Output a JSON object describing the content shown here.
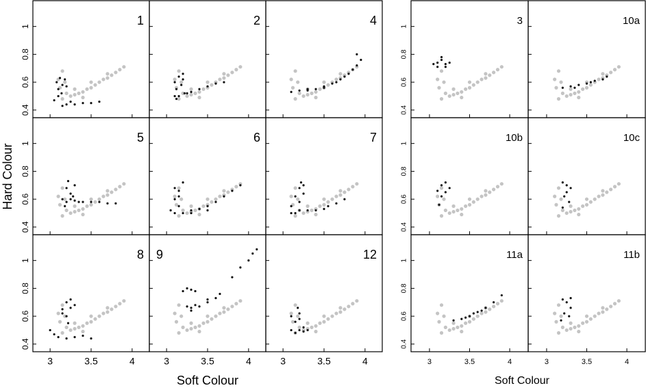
{
  "y_label": "Hard Colour",
  "groups": [
    {
      "x_label": "Soft Colour"
    },
    {
      "x_label": "Soft Colour"
    }
  ],
  "background": {
    "color": "#c4c4c4",
    "x": [
      3.1,
      3.15,
      3.12,
      3.18,
      3.2,
      3.25,
      3.3,
      3.35,
      3.4,
      3.45,
      3.5,
      3.55,
      3.6,
      3.65,
      3.7,
      3.75,
      3.8,
      3.85,
      3.9,
      3.3,
      3.5,
      3.7,
      3.15,
      3.4
    ],
    "y": [
      0.62,
      0.68,
      0.56,
      0.6,
      0.52,
      0.5,
      0.51,
      0.52,
      0.53,
      0.55,
      0.56,
      0.58,
      0.6,
      0.62,
      0.63,
      0.65,
      0.67,
      0.69,
      0.71,
      0.55,
      0.6,
      0.66,
      0.48,
      0.49
    ]
  },
  "chart_data": [
    {
      "type": "scatter",
      "label": "1",
      "color": "#111111",
      "xlim": [
        2.79,
        4.21
      ],
      "ylim": [
        0.345,
        1.185
      ],
      "xticks": [
        3,
        3.5,
        4
      ],
      "yticks": [
        0.4,
        0.6,
        0.8,
        1
      ],
      "x": [
        3.08,
        3.1,
        3.12,
        3.15,
        3.18,
        3.1,
        3.14,
        3.2,
        3.05,
        3.2,
        3.3,
        3.4,
        3.5,
        3.6,
        3.15,
        3.25
      ],
      "y": [
        0.6,
        0.55,
        0.63,
        0.58,
        0.62,
        0.5,
        0.52,
        0.57,
        0.47,
        0.44,
        0.44,
        0.45,
        0.45,
        0.46,
        0.43,
        0.46
      ]
    },
    {
      "type": "scatter",
      "label": "2",
      "color": "#111111",
      "xlim": [
        2.79,
        4.21
      ],
      "ylim": [
        0.345,
        1.185
      ],
      "xticks": [
        3,
        3.5,
        4
      ],
      "yticks": [
        0.4,
        0.6,
        0.8,
        1
      ],
      "x": [
        3.1,
        3.12,
        3.15,
        3.18,
        3.2,
        3.22,
        3.1,
        3.15,
        3.25,
        3.3,
        3.4,
        3.5,
        3.6,
        3.7,
        3.2,
        3.12
      ],
      "y": [
        0.6,
        0.55,
        0.64,
        0.58,
        0.62,
        0.52,
        0.5,
        0.5,
        0.52,
        0.53,
        0.55,
        0.57,
        0.59,
        0.6,
        0.66,
        0.48
      ]
    },
    {
      "type": "scatter",
      "label": "4",
      "color": "#111111",
      "xlim": [
        2.79,
        4.21
      ],
      "ylim": [
        0.345,
        1.185
      ],
      "xticks": [
        3,
        3.5,
        4
      ],
      "yticks": [
        0.4,
        0.6,
        0.8,
        1
      ],
      "x": [
        3.1,
        3.2,
        3.3,
        3.4,
        3.5,
        3.6,
        3.7,
        3.75,
        3.8,
        3.85,
        3.9,
        3.95,
        3.3,
        3.5,
        3.65,
        3.9
      ],
      "y": [
        0.53,
        0.54,
        0.55,
        0.55,
        0.57,
        0.59,
        0.62,
        0.64,
        0.66,
        0.69,
        0.72,
        0.76,
        0.54,
        0.56,
        0.6,
        0.8
      ]
    },
    {
      "type": "scatter",
      "label": "5",
      "color": "#111111",
      "xlim": [
        2.79,
        4.21
      ],
      "ylim": [
        0.345,
        1.185
      ],
      "xticks": [
        3,
        3.5,
        4
      ],
      "yticks": [
        0.4,
        0.6,
        0.8,
        1
      ],
      "x": [
        3.15,
        3.2,
        3.25,
        3.3,
        3.35,
        3.2,
        3.25,
        3.3,
        3.4,
        3.5,
        3.6,
        3.7,
        3.8,
        3.22,
        3.28,
        3.18
      ],
      "y": [
        0.6,
        0.58,
        0.6,
        0.59,
        0.58,
        0.68,
        0.64,
        0.7,
        0.58,
        0.58,
        0.58,
        0.57,
        0.57,
        0.73,
        0.62,
        0.55
      ]
    },
    {
      "type": "scatter",
      "label": "6",
      "color": "#111111",
      "xlim": [
        2.79,
        4.21
      ],
      "ylim": [
        0.345,
        1.185
      ],
      "xticks": [
        3,
        3.5,
        4
      ],
      "yticks": [
        0.4,
        0.6,
        0.8,
        1
      ],
      "x": [
        3.05,
        3.1,
        3.15,
        3.2,
        3.1,
        3.15,
        3.2,
        3.3,
        3.4,
        3.5,
        3.6,
        3.7,
        3.8,
        3.9,
        3.3,
        3.5,
        3.1,
        3.15
      ],
      "y": [
        0.52,
        0.6,
        0.66,
        0.72,
        0.5,
        0.55,
        0.5,
        0.52,
        0.53,
        0.55,
        0.58,
        0.62,
        0.66,
        0.7,
        0.5,
        0.52,
        0.68,
        0.62
      ]
    },
    {
      "type": "scatter",
      "label": "7",
      "color": "#111111",
      "xlim": [
        2.79,
        4.21
      ],
      "ylim": [
        0.345,
        1.185
      ],
      "xticks": [
        3,
        3.5,
        4
      ],
      "yticks": [
        0.4,
        0.6,
        0.8,
        1
      ],
      "x": [
        3.1,
        3.15,
        3.2,
        3.22,
        3.25,
        3.15,
        3.2,
        3.3,
        3.4,
        3.5,
        3.55,
        3.65,
        3.75,
        3.2,
        3.1,
        3.25
      ],
      "y": [
        0.55,
        0.62,
        0.68,
        0.72,
        0.7,
        0.5,
        0.52,
        0.52,
        0.52,
        0.53,
        0.55,
        0.57,
        0.6,
        0.58,
        0.5,
        0.64
      ]
    },
    {
      "type": "scatter",
      "label": "8",
      "color": "#111111",
      "xlim": [
        2.79,
        4.21
      ],
      "ylim": [
        0.345,
        1.185
      ],
      "xticks": [
        3,
        3.5,
        4
      ],
      "yticks": [
        0.4,
        0.6,
        0.8,
        1
      ],
      "x": [
        3.15,
        3.2,
        3.25,
        3.2,
        3.15,
        3.3,
        3.0,
        3.05,
        3.1,
        3.2,
        3.3,
        3.4,
        3.5,
        3.25,
        3.22
      ],
      "y": [
        0.65,
        0.7,
        0.72,
        0.6,
        0.62,
        0.68,
        0.5,
        0.47,
        0.45,
        0.44,
        0.45,
        0.46,
        0.44,
        0.66,
        0.55
      ]
    },
    {
      "type": "scatter",
      "label": "9",
      "label_corner": "top-left",
      "color": "#111111",
      "xlim": [
        2.79,
        4.21
      ],
      "ylim": [
        0.345,
        1.185
      ],
      "xticks": [
        3,
        3.5,
        4
      ],
      "yticks": [
        0.4,
        0.6,
        0.8,
        1
      ],
      "x": [
        3.2,
        3.25,
        3.3,
        3.35,
        3.3,
        3.25,
        3.4,
        3.5,
        3.6,
        3.65,
        3.5,
        3.8,
        3.9,
        4.0,
        4.05,
        4.1,
        3.3,
        3.35
      ],
      "y": [
        0.78,
        0.8,
        0.79,
        0.78,
        0.66,
        0.67,
        0.67,
        0.7,
        0.73,
        0.76,
        0.72,
        0.88,
        0.95,
        1.0,
        1.05,
        1.08,
        0.64,
        0.68
      ]
    },
    {
      "type": "scatter",
      "label": "12",
      "color": "#111111",
      "xlim": [
        2.79,
        4.21
      ],
      "ylim": [
        0.345,
        1.185
      ],
      "xticks": [
        3,
        3.5,
        4
      ],
      "yticks": [
        0.4,
        0.6,
        0.8,
        1
      ],
      "x": [
        3.1,
        3.15,
        3.2,
        3.25,
        3.1,
        3.2,
        3.15,
        3.25,
        3.3,
        3.2,
        3.18
      ],
      "y": [
        0.5,
        0.48,
        0.5,
        0.49,
        0.6,
        0.62,
        0.56,
        0.52,
        0.5,
        0.58,
        0.66
      ]
    },
    {
      "type": "scatter",
      "label": "3",
      "color": "#111111",
      "xlim": [
        2.77,
        4.23
      ],
      "ylim": [
        0.345,
        1.185
      ],
      "xticks": [
        3,
        3.5,
        4
      ],
      "yticks": [
        0.4,
        0.6,
        0.8,
        1
      ],
      "x": [
        3.05,
        3.1,
        3.15,
        3.2,
        3.25,
        3.1,
        3.2,
        3.15
      ],
      "y": [
        0.73,
        0.74,
        0.76,
        0.73,
        0.74,
        0.71,
        0.71,
        0.78
      ]
    },
    {
      "type": "scatter",
      "label": "10a",
      "color": "#111111",
      "xlim": [
        2.77,
        4.23
      ],
      "ylim": [
        0.345,
        1.185
      ],
      "xticks": [
        3,
        3.5,
        4
      ],
      "yticks": [
        0.4,
        0.6,
        0.8,
        1
      ],
      "x": [
        3.2,
        3.3,
        3.4,
        3.5,
        3.6,
        3.7,
        3.35,
        3.55,
        3.75
      ],
      "y": [
        0.56,
        0.57,
        0.58,
        0.59,
        0.61,
        0.62,
        0.56,
        0.6,
        0.64
      ]
    },
    {
      "type": "scatter",
      "label": "10b",
      "color": "#111111",
      "xlim": [
        2.77,
        4.23
      ],
      "ylim": [
        0.345,
        1.185
      ],
      "xticks": [
        3,
        3.5,
        4
      ],
      "yticks": [
        0.4,
        0.6,
        0.8,
        1
      ],
      "x": [
        3.1,
        3.15,
        3.2,
        3.25,
        3.15,
        3.12,
        3.2
      ],
      "y": [
        0.66,
        0.7,
        0.72,
        0.68,
        0.62,
        0.56,
        0.65
      ]
    },
    {
      "type": "scatter",
      "label": "10c",
      "color": "#111111",
      "xlim": [
        2.77,
        4.23
      ],
      "ylim": [
        0.345,
        1.185
      ],
      "xticks": [
        3,
        3.5,
        4
      ],
      "yticks": [
        0.4,
        0.6,
        0.8,
        1
      ],
      "x": [
        3.2,
        3.25,
        3.3,
        3.22,
        3.28,
        3.2,
        3.25
      ],
      "y": [
        0.72,
        0.7,
        0.68,
        0.62,
        0.58,
        0.54,
        0.65
      ]
    },
    {
      "type": "scatter",
      "label": "11a",
      "color": "#111111",
      "xlim": [
        2.77,
        4.23
      ],
      "ylim": [
        0.345,
        1.185
      ],
      "xticks": [
        3,
        3.5,
        4
      ],
      "yticks": [
        0.4,
        0.6,
        0.8,
        1
      ],
      "x": [
        3.3,
        3.4,
        3.5,
        3.6,
        3.7,
        3.8,
        3.9,
        3.45,
        3.55,
        3.65
      ],
      "y": [
        0.57,
        0.58,
        0.6,
        0.63,
        0.66,
        0.7,
        0.75,
        0.59,
        0.62,
        0.64
      ]
    },
    {
      "type": "scatter",
      "label": "11b",
      "color": "#111111",
      "xlim": [
        2.77,
        4.23
      ],
      "ylim": [
        0.345,
        1.185
      ],
      "xticks": [
        3,
        3.5,
        4
      ],
      "yticks": [
        0.4,
        0.6,
        0.8,
        1
      ],
      "x": [
        3.2,
        3.25,
        3.3,
        3.22,
        3.28,
        3.18,
        3.3
      ],
      "y": [
        0.72,
        0.7,
        0.73,
        0.62,
        0.6,
        0.57,
        0.66
      ]
    }
  ]
}
